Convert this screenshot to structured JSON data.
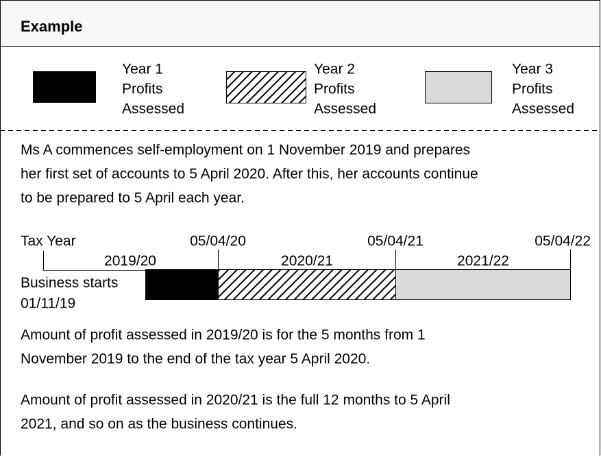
{
  "header": {
    "title": "Example"
  },
  "legend": {
    "items": [
      {
        "label": [
          "Year 1",
          "Profits",
          "Assessed"
        ]
      },
      {
        "label": [
          "Year 2",
          "Profits",
          "Assessed"
        ]
      },
      {
        "label": [
          "Year 3",
          "Profits",
          "Assessed"
        ]
      }
    ]
  },
  "intro": [
    "Ms A commences self-employment on 1 November 2019 and prepares",
    "her first set of accounts to 5 April 2020. After this, her accounts continue",
    "to be prepared to 5 April each year."
  ],
  "timeline": {
    "label": "Tax Year",
    "dates": [
      "05/04/20",
      "05/04/21",
      "05/04/22"
    ],
    "tax_years": [
      "2019/20",
      "2020/21",
      "2021/22"
    ],
    "start_label": [
      "Business starts",
      "01/11/19"
    ]
  },
  "paragraphs": [
    [
      "Amount of profit assessed in 2019/20 is for the 5 months from 1",
      "November 2019 to the end of the tax year 5 April 2020."
    ],
    [
      "Amount of profit assessed in 2020/21 is the full 12 months to 5 April",
      "2021, and so on as the business continues."
    ]
  ]
}
